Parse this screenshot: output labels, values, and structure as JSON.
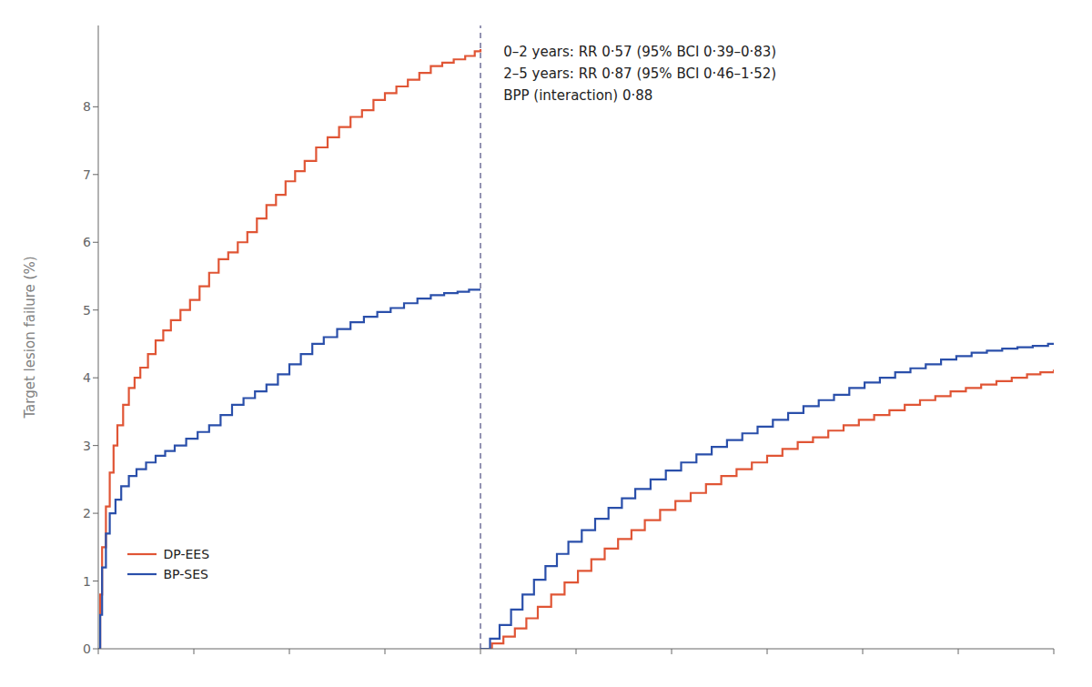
{
  "chart_data": {
    "type": "step",
    "ylabel": "Target lesion failure (%)",
    "xlim": [
      0,
      5.0
    ],
    "ylim": [
      0,
      9.2
    ],
    "xticks": [
      0,
      0.5,
      1.0,
      1.5,
      2.0,
      2.5,
      3.0,
      3.5,
      4.0,
      4.5,
      5.0
    ],
    "yticks": [
      0,
      1,
      2,
      3,
      4,
      5,
      6,
      7,
      8
    ],
    "tick_labels": "y",
    "grid": false,
    "legend": "lower left",
    "vlines": [
      {
        "x": 2.0,
        "line_style": "dashed"
      }
    ],
    "annotations": [
      {
        "text": "0–2 years: RR 0·57 (95% BCI 0·39–0·83)\n2–5 years: RR 0·87 (95% BCI 0·46–1·52)\nBPP (interaction) 0·88",
        "x": 2.12,
        "y": 8.95
      }
    ],
    "series": [
      {
        "name": "DP-EES",
        "color": "#e05535",
        "x": [
          0,
          0.01,
          0.02,
          0.04,
          0.06,
          0.08,
          0.1,
          0.13,
          0.16,
          0.19,
          0.22,
          0.26,
          0.3,
          0.34,
          0.38,
          0.43,
          0.48,
          0.53,
          0.58,
          0.63,
          0.68,
          0.73,
          0.78,
          0.83,
          0.88,
          0.93,
          0.98,
          1.03,
          1.08,
          1.14,
          1.2,
          1.26,
          1.32,
          1.38,
          1.44,
          1.5,
          1.56,
          1.62,
          1.68,
          1.74,
          1.8,
          1.86,
          1.92,
          1.97,
          2.0
        ],
        "values": [
          0,
          0.8,
          1.5,
          2.1,
          2.6,
          3.0,
          3.3,
          3.6,
          3.85,
          4.0,
          4.15,
          4.35,
          4.55,
          4.7,
          4.85,
          5.0,
          5.15,
          5.35,
          5.55,
          5.75,
          5.85,
          6.0,
          6.15,
          6.35,
          6.55,
          6.7,
          6.9,
          7.05,
          7.2,
          7.4,
          7.55,
          7.7,
          7.85,
          7.95,
          8.1,
          8.2,
          8.3,
          8.4,
          8.5,
          8.6,
          8.65,
          8.7,
          8.75,
          8.82,
          8.85
        ]
      },
      {
        "name": "BP-SES",
        "color": "#2a4faa",
        "x": [
          0,
          0.01,
          0.02,
          0.04,
          0.06,
          0.09,
          0.12,
          0.16,
          0.2,
          0.25,
          0.3,
          0.35,
          0.4,
          0.46,
          0.52,
          0.58,
          0.64,
          0.7,
          0.76,
          0.82,
          0.88,
          0.94,
          1.0,
          1.06,
          1.12,
          1.18,
          1.25,
          1.32,
          1.39,
          1.46,
          1.53,
          1.6,
          1.67,
          1.74,
          1.81,
          1.88,
          1.94,
          2.0
        ],
        "values": [
          0,
          0.5,
          1.2,
          1.7,
          2.0,
          2.2,
          2.4,
          2.55,
          2.65,
          2.75,
          2.85,
          2.92,
          3.0,
          3.1,
          3.2,
          3.3,
          3.45,
          3.6,
          3.7,
          3.8,
          3.9,
          4.05,
          4.2,
          4.35,
          4.5,
          4.6,
          4.72,
          4.82,
          4.9,
          4.97,
          5.03,
          5.1,
          5.17,
          5.22,
          5.25,
          5.27,
          5.3,
          5.3
        ]
      },
      {
        "name": "DP-EES",
        "color": "#e05535",
        "x": [
          2.0,
          2.06,
          2.12,
          2.18,
          2.24,
          2.3,
          2.37,
          2.44,
          2.51,
          2.58,
          2.65,
          2.72,
          2.79,
          2.86,
          2.94,
          3.02,
          3.1,
          3.18,
          3.26,
          3.34,
          3.42,
          3.5,
          3.58,
          3.66,
          3.74,
          3.82,
          3.9,
          3.98,
          4.06,
          4.14,
          4.22,
          4.3,
          4.38,
          4.46,
          4.54,
          4.62,
          4.7,
          4.78,
          4.86,
          4.93,
          5.0
        ],
        "values": [
          0,
          0.08,
          0.18,
          0.3,
          0.45,
          0.62,
          0.8,
          0.98,
          1.15,
          1.32,
          1.48,
          1.62,
          1.75,
          1.9,
          2.05,
          2.18,
          2.3,
          2.43,
          2.55,
          2.65,
          2.75,
          2.85,
          2.95,
          3.05,
          3.12,
          3.22,
          3.3,
          3.38,
          3.45,
          3.52,
          3.6,
          3.67,
          3.73,
          3.8,
          3.85,
          3.9,
          3.95,
          4.0,
          4.05,
          4.08,
          4.12
        ]
      },
      {
        "name": "BP-SES",
        "color": "#2a4faa",
        "x": [
          2.0,
          2.05,
          2.1,
          2.16,
          2.22,
          2.28,
          2.34,
          2.4,
          2.46,
          2.53,
          2.6,
          2.67,
          2.74,
          2.81,
          2.89,
          2.97,
          3.05,
          3.13,
          3.21,
          3.29,
          3.37,
          3.45,
          3.53,
          3.61,
          3.69,
          3.77,
          3.85,
          3.93,
          4.01,
          4.09,
          4.17,
          4.25,
          4.33,
          4.41,
          4.49,
          4.57,
          4.65,
          4.73,
          4.81,
          4.89,
          4.97,
          5.0
        ],
        "values": [
          0,
          0.15,
          0.35,
          0.58,
          0.8,
          1.02,
          1.22,
          1.4,
          1.58,
          1.75,
          1.92,
          2.08,
          2.22,
          2.36,
          2.5,
          2.63,
          2.75,
          2.87,
          2.98,
          3.08,
          3.18,
          3.28,
          3.38,
          3.48,
          3.58,
          3.67,
          3.75,
          3.85,
          3.93,
          4.0,
          4.08,
          4.14,
          4.2,
          4.27,
          4.32,
          4.37,
          4.4,
          4.43,
          4.45,
          4.47,
          4.5,
          4.5
        ]
      }
    ]
  }
}
